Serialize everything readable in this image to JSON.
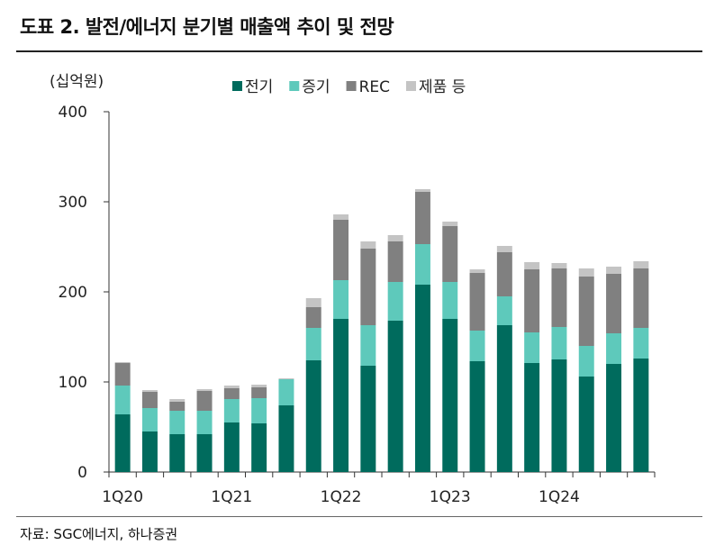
{
  "header": {
    "title": "도표 2. 발전/에너지 분기별 매출액 추이 및 전망"
  },
  "footer": {
    "source": "자료: SGC에너지, 하나증권"
  },
  "colors": {
    "전기": "#006b5d",
    "증기": "#5ec9bb",
    "REC": "#808080",
    "제품 등": "#c4c4c4"
  },
  "chart_data": {
    "type": "bar",
    "stacked": true,
    "title": "",
    "unit_label": "(십억원)",
    "xlabel": "",
    "ylabel": "(십억원)",
    "ylim": [
      0,
      400
    ],
    "yticks": [
      0,
      100,
      200,
      300,
      400
    ],
    "categories": [
      "1Q20",
      "2Q20",
      "3Q20",
      "4Q20",
      "1Q21",
      "2Q21",
      "3Q21",
      "4Q21",
      "1Q22",
      "2Q22",
      "3Q22",
      "4Q22",
      "1Q23",
      "2Q23",
      "3Q23",
      "4Q23",
      "1Q24",
      "2Q24",
      "3Q24",
      "4Q24"
    ],
    "x_tick_labels": [
      "1Q20",
      "",
      "",
      "",
      "1Q21",
      "",
      "",
      "",
      "1Q22",
      "",
      "",
      "",
      "1Q23",
      "",
      "",
      "",
      "1Q24",
      "",
      "",
      ""
    ],
    "legend_position": "top",
    "series": [
      {
        "name": "전기",
        "values": [
          64,
          45,
          42,
          42,
          55,
          54,
          74,
          124,
          170,
          118,
          168,
          208,
          170,
          123,
          163,
          121,
          125,
          106,
          120,
          126
        ]
      },
      {
        "name": "증기",
        "values": [
          32,
          26,
          26,
          26,
          26,
          28,
          29,
          36,
          43,
          45,
          43,
          45,
          41,
          34,
          32,
          34,
          36,
          34,
          34,
          34
        ]
      },
      {
        "name": "REC",
        "values": [
          25,
          18,
          10,
          22,
          12,
          12,
          0,
          23,
          67,
          85,
          45,
          58,
          62,
          64,
          49,
          70,
          65,
          77,
          66,
          66
        ]
      },
      {
        "name": "제품 등",
        "values": [
          1,
          2,
          3,
          2,
          3,
          3,
          1,
          10,
          6,
          8,
          7,
          3,
          5,
          4,
          7,
          8,
          6,
          9,
          8,
          8
        ]
      }
    ]
  }
}
